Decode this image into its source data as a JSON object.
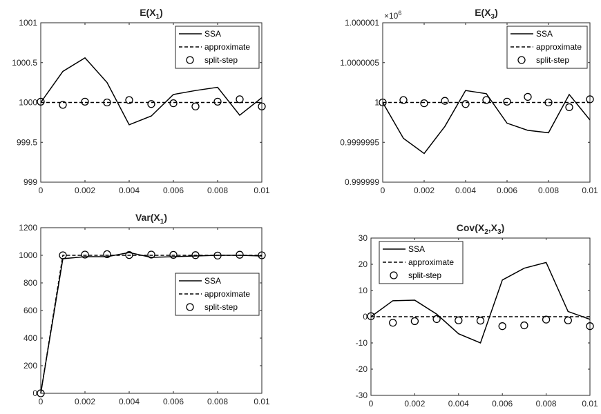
{
  "chart_data": [
    {
      "type": "line",
      "title": {
        "base": "E(X",
        "sub": "1",
        "close": ")"
      },
      "x": [
        0,
        0.001,
        0.002,
        0.003,
        0.004,
        0.005,
        0.006,
        0.007,
        0.008,
        0.009,
        0.01
      ],
      "xlim": [
        0,
        0.01
      ],
      "ylim": [
        999,
        1001
      ],
      "xticks": [
        0,
        0.002,
        0.004,
        0.006,
        0.008,
        0.01
      ],
      "xtick_labels": [
        "0",
        "0.002",
        "0.004",
        "0.006",
        "0.008",
        "0.01"
      ],
      "yticks": [
        999,
        999.5,
        1000,
        1000.5,
        1001
      ],
      "ytick_labels": [
        "999",
        "999.5",
        "1000",
        "1000.5",
        "1001"
      ],
      "exponent_label": "",
      "legend": {
        "location": "top-right",
        "entries": [
          "SSA",
          "approximate",
          "split-step"
        ]
      },
      "series": [
        {
          "name": "SSA",
          "style": "solid",
          "values": [
            1000.0,
            1000.39,
            1000.56,
            1000.25,
            999.72,
            999.83,
            1000.1,
            1000.15,
            1000.19,
            999.84,
            1000.06
          ]
        },
        {
          "name": "approximate",
          "style": "dashed",
          "values": [
            1000,
            1000,
            1000,
            1000,
            1000,
            1000,
            1000,
            1000,
            1000,
            1000,
            1000
          ]
        },
        {
          "name": "split-step",
          "style": "circles",
          "values": [
            1000.01,
            999.97,
            1000.01,
            1000.0,
            1000.03,
            999.98,
            999.99,
            999.95,
            1000.01,
            1000.04,
            999.95
          ]
        }
      ]
    },
    {
      "type": "line",
      "title": {
        "base": "E(X",
        "sub": "3",
        "close": ")"
      },
      "x": [
        0,
        0.001,
        0.002,
        0.003,
        0.004,
        0.005,
        0.006,
        0.007,
        0.008,
        0.009,
        0.01
      ],
      "xlim": [
        0,
        0.01
      ],
      "ylim": [
        0.999999,
        1.000001
      ],
      "xticks": [
        0,
        0.002,
        0.004,
        0.006,
        0.008,
        0.01
      ],
      "xtick_labels": [
        "0",
        "0.002",
        "0.004",
        "0.006",
        "0.008",
        "0.01"
      ],
      "yticks": [
        0.999999,
        0.9999995,
        1,
        1.0000005,
        1.000001
      ],
      "ytick_labels": [
        "0.999999",
        "0.9999995",
        "1",
        "1.0000005",
        "1.000001"
      ],
      "exponent_label": "×10",
      "exponent_power": "6",
      "legend": {
        "location": "top-right",
        "entries": [
          "SSA",
          "approximate",
          "split-step"
        ]
      },
      "series": [
        {
          "name": "SSA",
          "style": "solid",
          "values": [
            1.0,
            0.99999955,
            0.99999936,
            0.9999997,
            1.00000015,
            1.00000011,
            0.99999974,
            0.99999965,
            0.99999962,
            1.0000001,
            0.99999978
          ]
        },
        {
          "name": "approximate",
          "style": "dashed",
          "values": [
            1,
            1,
            1,
            1,
            1,
            1,
            1,
            1,
            1,
            1,
            1
          ]
        },
        {
          "name": "split-step",
          "style": "circles",
          "values": [
            1.0,
            1.00000003,
            0.99999999,
            1.00000002,
            0.99999998,
            1.00000003,
            1.00000001,
            1.00000007,
            1.0,
            0.99999994,
            1.00000004
          ]
        }
      ]
    },
    {
      "type": "line",
      "title": {
        "base": "Var(X",
        "sub": "1",
        "close": ")"
      },
      "x": [
        0,
        0.001,
        0.002,
        0.003,
        0.004,
        0.005,
        0.006,
        0.007,
        0.008,
        0.009,
        0.01
      ],
      "xlim": [
        0,
        0.01
      ],
      "ylim": [
        0,
        1200
      ],
      "xticks": [
        0,
        0.002,
        0.004,
        0.006,
        0.008,
        0.01
      ],
      "xtick_labels": [
        "0",
        "0.002",
        "0.004",
        "0.006",
        "0.008",
        "0.01"
      ],
      "yticks": [
        0,
        200,
        400,
        600,
        800,
        1000,
        1200
      ],
      "ytick_labels": [
        "0",
        "200",
        "400",
        "600",
        "800",
        "1000",
        "1200"
      ],
      "exponent_label": "",
      "legend": {
        "location": "center-right",
        "entries": [
          "SSA",
          "approximate",
          "split-step"
        ]
      },
      "series": [
        {
          "name": "SSA",
          "style": "solid",
          "values": [
            0,
            975,
            990,
            990,
            1020,
            985,
            990,
            995,
            1000,
            1000,
            995
          ]
        },
        {
          "name": "approximate",
          "style": "dashed",
          "values": [
            0,
            1000,
            1000,
            1000,
            1000,
            1000,
            1000,
            1000,
            1000,
            1000,
            1000
          ]
        },
        {
          "name": "split-step",
          "style": "circles",
          "values": [
            0,
            1000,
            1005,
            1008,
            1002,
            1005,
            1003,
            1001,
            998,
            1004,
            1000
          ]
        }
      ]
    },
    {
      "type": "line",
      "title": {
        "base": "Cov(X",
        "sub": "2",
        "mid": ",X",
        "sub2": "3",
        "close": ")"
      },
      "x": [
        0,
        0.001,
        0.002,
        0.003,
        0.004,
        0.005,
        0.006,
        0.007,
        0.008,
        0.009,
        0.01
      ],
      "xlim": [
        0,
        0.01
      ],
      "ylim": [
        -30,
        30
      ],
      "xticks": [
        0,
        0.002,
        0.004,
        0.006,
        0.008,
        0.01
      ],
      "xtick_labels": [
        "0",
        "0.002",
        "0.004",
        "0.006",
        "0.008",
        "0.01"
      ],
      "yticks": [
        -30,
        -20,
        -10,
        0,
        10,
        20,
        30
      ],
      "ytick_labels": [
        "-30",
        "-20",
        "-10",
        "0",
        "10",
        "20",
        "30"
      ],
      "exponent_label": "",
      "legend": {
        "location": "top-left",
        "entries": [
          "SSA",
          "approximate",
          "split-step"
        ]
      },
      "series": [
        {
          "name": "SSA",
          "style": "solid",
          "values": [
            0,
            6.1,
            6.3,
            1.0,
            -6.5,
            -10.0,
            14.0,
            18.5,
            20.7,
            2.0,
            -1.0
          ]
        },
        {
          "name": "approximate",
          "style": "dashed",
          "values": [
            0,
            0,
            0,
            0,
            0,
            0,
            0,
            0,
            0,
            0,
            0
          ]
        },
        {
          "name": "split-step",
          "style": "circles",
          "values": [
            0.2,
            -2.3,
            -1.7,
            -0.9,
            -1.4,
            -1.5,
            -3.6,
            -3.3,
            -1.1,
            -1.4,
            -3.6
          ]
        }
      ]
    }
  ]
}
